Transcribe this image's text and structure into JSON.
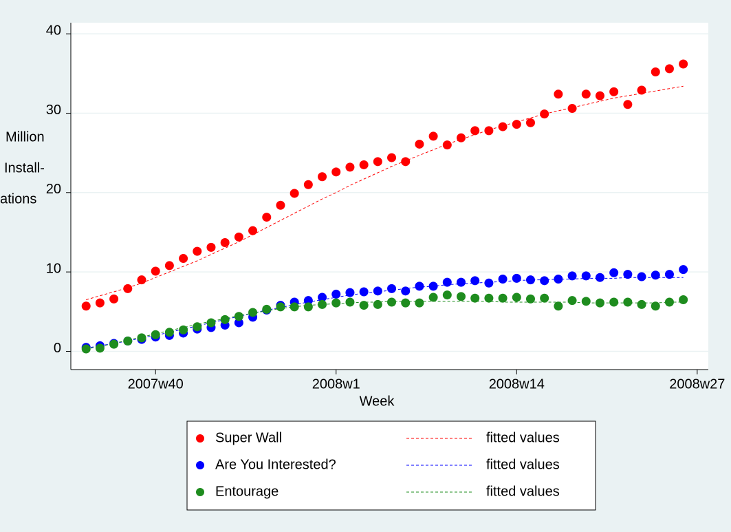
{
  "chart_data": {
    "type": "scatter",
    "x_label": "Week",
    "y_label_lines": [
      "Million",
      "Install-",
      "ations"
    ],
    "x": [
      2478,
      2479,
      2480,
      2481,
      2482,
      2483,
      2484,
      2485,
      2486,
      2487,
      2488,
      2489,
      2490,
      2491,
      2492,
      2493,
      2494,
      2495,
      2496,
      2497,
      2498,
      2499,
      2500,
      2501,
      2502,
      2503,
      2504,
      2505,
      2506,
      2507,
      2508,
      2509,
      2510,
      2511,
      2512,
      2513,
      2514,
      2515,
      2516,
      2517,
      2518,
      2519,
      2520,
      2521
    ],
    "xlim": [
      2476.9,
      2522.8
    ],
    "xticks": [
      {
        "value": 2483,
        "label": "2007w40"
      },
      {
        "value": 2496,
        "label": "2008w1"
      },
      {
        "value": 2509,
        "label": "2008w14"
      },
      {
        "value": 2522,
        "label": "2008w27"
      }
    ],
    "ylim": [
      -2.3,
      41.4
    ],
    "yticks": [
      0,
      10,
      20,
      30,
      40
    ],
    "grid": true,
    "series": [
      {
        "name": "Super Wall",
        "color": "#ff0000",
        "style": "markers",
        "values": [
          5.7,
          6.1,
          6.6,
          7.9,
          9.0,
          10.1,
          10.8,
          11.7,
          12.6,
          13.1,
          13.7,
          14.4,
          15.2,
          16.9,
          18.4,
          19.9,
          21.0,
          22.0,
          22.6,
          23.2,
          23.5,
          23.9,
          24.4,
          23.9,
          26.1,
          27.1,
          26.0,
          26.9,
          27.8,
          27.8,
          28.3,
          28.6,
          28.8,
          29.9,
          32.4,
          30.6,
          32.4,
          32.2,
          32.7,
          31.1,
          32.9,
          35.2,
          35.6,
          36.2
        ]
      },
      {
        "name": "fitted values",
        "color": "#ff0000",
        "style": "dashed",
        "values": [
          6.5,
          7.0,
          7.5,
          8.0,
          8.6,
          9.3,
          10.0,
          10.7,
          11.4,
          12.2,
          13.0,
          13.8,
          14.7,
          15.6,
          16.5,
          17.4,
          18.3,
          19.2,
          20.0,
          20.9,
          21.7,
          22.5,
          23.3,
          24.0,
          24.7,
          25.4,
          26.1,
          26.7,
          27.3,
          27.9,
          28.4,
          28.9,
          29.4,
          29.9,
          30.3,
          30.7,
          31.1,
          31.5,
          31.9,
          32.2,
          32.5,
          32.8,
          33.1,
          33.4
        ]
      },
      {
        "name": "Are You Interested?",
        "color": "#0000ff",
        "style": "markers",
        "values": [
          0.5,
          0.7,
          1.0,
          1.3,
          1.5,
          1.8,
          2.0,
          2.3,
          2.8,
          3.0,
          3.3,
          3.6,
          4.3,
          5.2,
          5.8,
          6.2,
          6.4,
          6.8,
          7.2,
          7.4,
          7.5,
          7.6,
          7.9,
          7.6,
          8.2,
          8.2,
          8.7,
          8.7,
          8.9,
          8.6,
          9.1,
          9.2,
          9.0,
          8.9,
          9.1,
          9.5,
          9.5,
          9.3,
          9.9,
          9.7,
          9.4,
          9.6,
          9.7,
          10.3
        ]
      },
      {
        "name": "fitted values",
        "color": "#0000ff",
        "style": "dashed",
        "values": [
          0.4,
          0.7,
          1.0,
          1.3,
          1.7,
          2.0,
          2.4,
          2.8,
          3.2,
          3.6,
          4.0,
          4.4,
          4.8,
          5.2,
          5.5,
          5.9,
          6.2,
          6.5,
          6.8,
          7.1,
          7.3,
          7.5,
          7.7,
          7.9,
          8.1,
          8.2,
          8.4,
          8.5,
          8.6,
          8.7,
          8.8,
          8.9,
          9.0,
          9.0,
          9.1,
          9.1,
          9.2,
          9.2,
          9.2,
          9.3,
          9.3,
          9.3,
          9.3,
          9.3
        ]
      },
      {
        "name": "Entourage",
        "color": "#1e8c1e",
        "style": "markers",
        "values": [
          0.3,
          0.4,
          0.9,
          1.3,
          1.7,
          2.1,
          2.4,
          2.7,
          3.1,
          3.6,
          4.0,
          4.4,
          4.9,
          5.3,
          5.6,
          5.6,
          5.6,
          5.9,
          6.1,
          6.2,
          5.8,
          5.9,
          6.2,
          6.1,
          6.1,
          6.8,
          7.1,
          6.9,
          6.7,
          6.7,
          6.7,
          6.8,
          6.6,
          6.7,
          5.7,
          6.4,
          6.3,
          6.1,
          6.2,
          6.2,
          5.9,
          5.7,
          6.2,
          6.5
        ]
      },
      {
        "name": "fitted values",
        "color": "#1e8c1e",
        "style": "dashed",
        "values": [
          0.3,
          0.6,
          1.0,
          1.4,
          1.8,
          2.2,
          2.6,
          3.0,
          3.4,
          3.8,
          4.1,
          4.5,
          4.8,
          5.1,
          5.4,
          5.6,
          5.8,
          5.9,
          6.0,
          6.1,
          6.2,
          6.2,
          6.3,
          6.3,
          6.3,
          6.3,
          6.3,
          6.3,
          6.3,
          6.3,
          6.2,
          6.2,
          6.2,
          6.2,
          6.2,
          6.2,
          6.1,
          6.1,
          6.1,
          6.1,
          6.1,
          6.1,
          6.2,
          6.2
        ]
      }
    ]
  }
}
